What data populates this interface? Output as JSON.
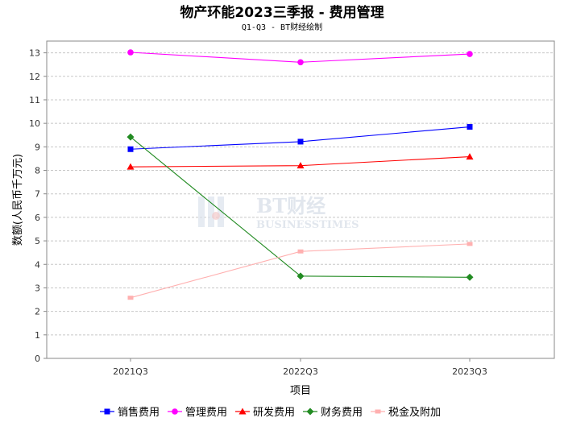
{
  "chart_data": {
    "type": "line",
    "title": "物产环能2023三季报 - 费用管理",
    "subtitle": "Q1-Q3 - BT财经绘制",
    "xlabel": "项目",
    "ylabel": "数额(人民币千万元)",
    "categories": [
      "2021Q3",
      "2022Q3",
      "2023Q3"
    ],
    "ylim": [
      0,
      13.5
    ],
    "yticks": [
      0,
      1,
      2,
      3,
      4,
      5,
      6,
      7,
      8,
      9,
      10,
      11,
      12,
      13
    ],
    "grid": true,
    "legend_position": "bottom",
    "series": [
      {
        "name": "销售费用",
        "color": "#0000ff",
        "marker": "square",
        "values": [
          8.9,
          9.22,
          9.85
        ]
      },
      {
        "name": "管理费用",
        "color": "#ff00ff",
        "marker": "circle",
        "values": [
          13.02,
          12.6,
          12.95
        ]
      },
      {
        "name": "研发费用",
        "color": "#ff0000",
        "marker": "triangle",
        "values": [
          8.15,
          8.2,
          8.58
        ]
      },
      {
        "name": "财务费用",
        "color": "#228b22",
        "marker": "diamond",
        "values": [
          9.42,
          3.5,
          3.45
        ]
      },
      {
        "name": "税金及附加",
        "color": "#ffb0b0",
        "marker": "rect",
        "values": [
          2.58,
          4.55,
          4.87
        ]
      }
    ]
  },
  "watermark": {
    "main": "BT财经",
    "sub": "BUSINESSTIMES"
  }
}
